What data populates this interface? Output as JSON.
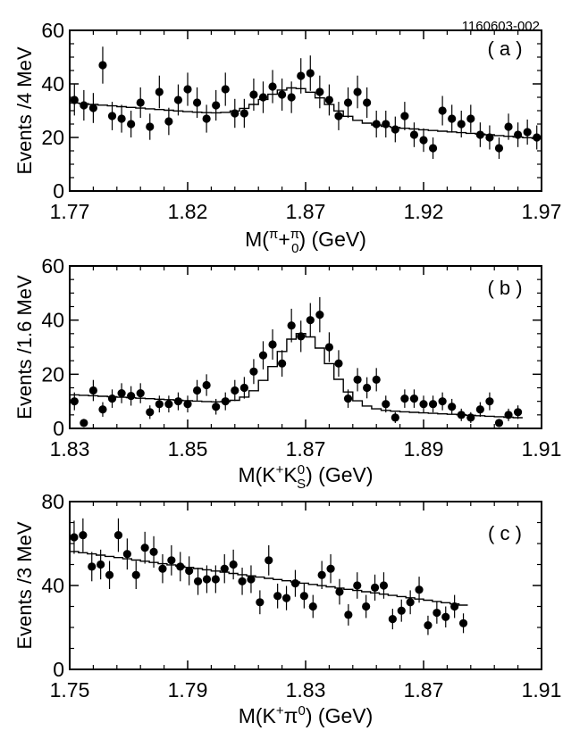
{
  "figure_id": "1160603-002",
  "chart_data": [
    {
      "type": "scatter",
      "panel_label": "( a )",
      "xlabel_parts": [
        "M(",
        "π",
        "+",
        "π",
        "0",
        ") (GeV)"
      ],
      "ylabel": "Events /4 MeV",
      "xlim": [
        1.77,
        1.97
      ],
      "ylim": [
        0,
        60
      ],
      "xticks": [
        1.77,
        1.82,
        1.87,
        1.92,
        1.97
      ],
      "xtick_labels": [
        "1.77",
        "1.82",
        "1.87",
        "1.92",
        "1.97"
      ],
      "yticks": [
        0,
        20,
        40,
        60
      ],
      "ytick_labels": [
        "0",
        "20",
        "40",
        "60"
      ],
      "bin_width": 0.004,
      "x_start": 1.772,
      "values": [
        34,
        32,
        31,
        47,
        28,
        27,
        25,
        33,
        24,
        37,
        26,
        34,
        38,
        33,
        27,
        32,
        38,
        29,
        29,
        36,
        35,
        39,
        36,
        35,
        43,
        44,
        37,
        34,
        28,
        33,
        37,
        33,
        25,
        25,
        23,
        28,
        21,
        19,
        16,
        30,
        27,
        25,
        27,
        21,
        20,
        16,
        24,
        21,
        22,
        20
      ],
      "errors": [
        5.8,
        5.7,
        5.6,
        6.9,
        5.3,
        5.2,
        5.0,
        5.7,
        4.9,
        6.1,
        5.1,
        5.8,
        6.2,
        5.7,
        5.2,
        5.7,
        6.2,
        5.4,
        5.4,
        6.0,
        5.9,
        6.2,
        6.0,
        5.9,
        6.6,
        6.6,
        6.1,
        5.8,
        5.3,
        5.7,
        6.1,
        5.7,
        5.0,
        5.0,
        4.8,
        5.3,
        4.6,
        4.4,
        4.0,
        5.5,
        5.2,
        5.0,
        5.2,
        4.6,
        4.5,
        4.0,
        4.9,
        4.6,
        4.7,
        4.5
      ],
      "fit": {
        "model": "linear_background_plus_gaussian",
        "bg_start": 33,
        "bg_end": 19.5,
        "peak_center": 1.866,
        "peak_sigma": 0.013,
        "peak_height": 12
      }
    },
    {
      "type": "scatter",
      "panel_label": "( b )",
      "xlabel_parts": [
        "M(K",
        "+",
        "K",
        "0",
        "S",
        ") (GeV)"
      ],
      "ylabel": "Events /1.6 MeV",
      "xlim": [
        1.83,
        1.91
      ],
      "ylim": [
        0,
        60
      ],
      "xticks": [
        1.83,
        1.85,
        1.87,
        1.89,
        1.91
      ],
      "xtick_labels": [
        "1.83",
        "1.85",
        "1.87",
        "1.89",
        "1.91"
      ],
      "yticks": [
        0,
        20,
        40,
        60
      ],
      "ytick_labels": [
        "0",
        "20",
        "40",
        "60"
      ],
      "bin_width": 0.0016,
      "x_start": 1.8308,
      "values": [
        10,
        2,
        14,
        7,
        11,
        13,
        12,
        13,
        6,
        9,
        9,
        10,
        9,
        14,
        16,
        8,
        10,
        14,
        15,
        21,
        27,
        31,
        24,
        38,
        34,
        40,
        42,
        30,
        24,
        11,
        18,
        15,
        18,
        9,
        4,
        11,
        11,
        9,
        9,
        10,
        8,
        5,
        4,
        7,
        10,
        2,
        5,
        6
      ],
      "errors": [
        3.3,
        1.5,
        3.9,
        2.7,
        3.4,
        3.7,
        3.6,
        3.7,
        2.5,
        3.1,
        3.1,
        3.3,
        3.1,
        3.9,
        4.0,
        2.9,
        3.3,
        3.9,
        4.0,
        4.6,
        5.2,
        5.6,
        4.9,
        6.2,
        5.8,
        6.3,
        6.5,
        5.5,
        4.9,
        3.4,
        4.3,
        3.9,
        4.3,
        3.1,
        2.0,
        3.4,
        3.4,
        3.1,
        3.1,
        3.3,
        2.9,
        2.3,
        2.0,
        2.7,
        3.3,
        1.5,
        2.3,
        2.5
      ],
      "fit": {
        "model": "linear_background_plus_gaussian",
        "bg_start": 12.5,
        "bg_end": 3.5,
        "peak_center": 1.8695,
        "peak_sigma": 0.0045,
        "peak_height": 27
      }
    },
    {
      "type": "scatter",
      "panel_label": "( c )",
      "xlabel_parts": [
        "M(K",
        "+",
        "π",
        "0",
        "",
        ") (GeV)"
      ],
      "ylabel": "Events /3 MeV",
      "xlim": [
        1.75,
        1.91
      ],
      "ylim": [
        0,
        80
      ],
      "xticks": [
        1.75,
        1.79,
        1.83,
        1.87,
        1.91
      ],
      "xtick_labels": [
        "1.75",
        "1.79",
        "1.83",
        "1.87",
        "1.91"
      ],
      "yticks": [
        0,
        40,
        80
      ],
      "ytick_labels": [
        "0",
        "40",
        "80"
      ],
      "bin_width": 0.003,
      "x_start": 1.7515,
      "values": [
        63,
        64,
        49,
        50,
        45,
        64,
        55,
        45,
        58,
        56,
        48,
        52,
        49,
        47,
        42,
        43,
        43,
        48,
        50,
        42,
        43,
        32,
        52,
        35,
        34,
        41,
        35,
        30,
        45,
        48,
        37,
        26,
        40,
        30,
        39,
        40,
        24,
        28,
        32,
        38,
        21,
        27,
        25,
        30,
        22
      ],
      "errors": [
        7.9,
        8.0,
        7.0,
        7.1,
        6.7,
        8.0,
        7.4,
        6.7,
        7.6,
        7.5,
        6.9,
        7.2,
        7.0,
        6.9,
        6.5,
        6.6,
        6.6,
        6.9,
        7.1,
        6.5,
        6.6,
        5.7,
        7.2,
        5.9,
        5.8,
        6.4,
        5.9,
        5.5,
        6.7,
        6.9,
        6.1,
        5.1,
        6.3,
        5.5,
        6.2,
        6.3,
        4.9,
        5.3,
        5.7,
        6.2,
        4.6,
        5.2,
        5.0,
        5.5,
        4.7
      ],
      "fit": {
        "model": "linear_background",
        "bg_start": 56.5,
        "bg_end": 25.5
      }
    }
  ]
}
